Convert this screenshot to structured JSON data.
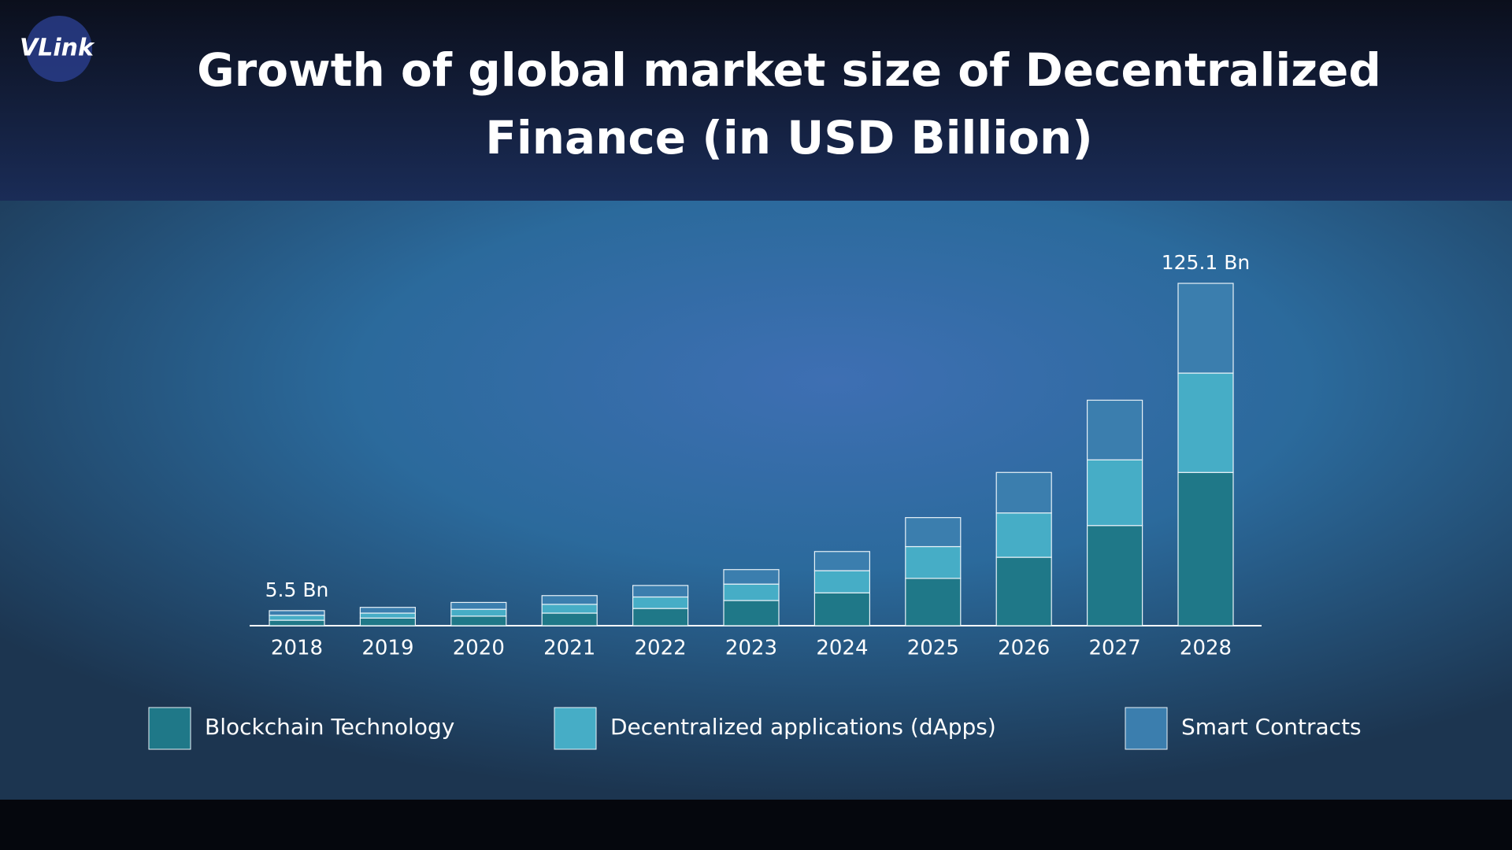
{
  "logo": "VLink",
  "chart_data": {
    "type": "stacked-bar",
    "title": "Growth of global market size of Decentralized Finance (in USD Billion)",
    "categories": [
      "2018",
      "2019",
      "2020",
      "2021",
      "2022",
      "2023",
      "2024",
      "2025",
      "2026",
      "2027",
      "2028"
    ],
    "series": [
      {
        "name": "Blockchain Technology",
        "color": "#1f7888",
        "values": [
          2.0,
          2.8,
          3.5,
          4.6,
          6.3,
          9.2,
          12.0,
          17.3,
          25.0,
          36.6,
          56.0
        ]
      },
      {
        "name": "Decentralized applications (dApps)",
        "color": "#46adc6",
        "values": [
          1.8,
          1.8,
          2.5,
          3.2,
          4.2,
          6.0,
          8.1,
          11.6,
          16.2,
          24.0,
          36.3
        ]
      },
      {
        "name": "Smart Contracts",
        "color": "#3b7eae",
        "values": [
          1.7,
          2.1,
          2.5,
          3.2,
          4.2,
          5.3,
          7.0,
          10.6,
          14.8,
          21.8,
          32.8
        ]
      }
    ],
    "annotations": [
      {
        "category": "2018",
        "value": 5.5,
        "label": "5.5 Bn"
      },
      {
        "category": "2028",
        "value": 125.1,
        "label": "125.1 Bn"
      }
    ]
  }
}
